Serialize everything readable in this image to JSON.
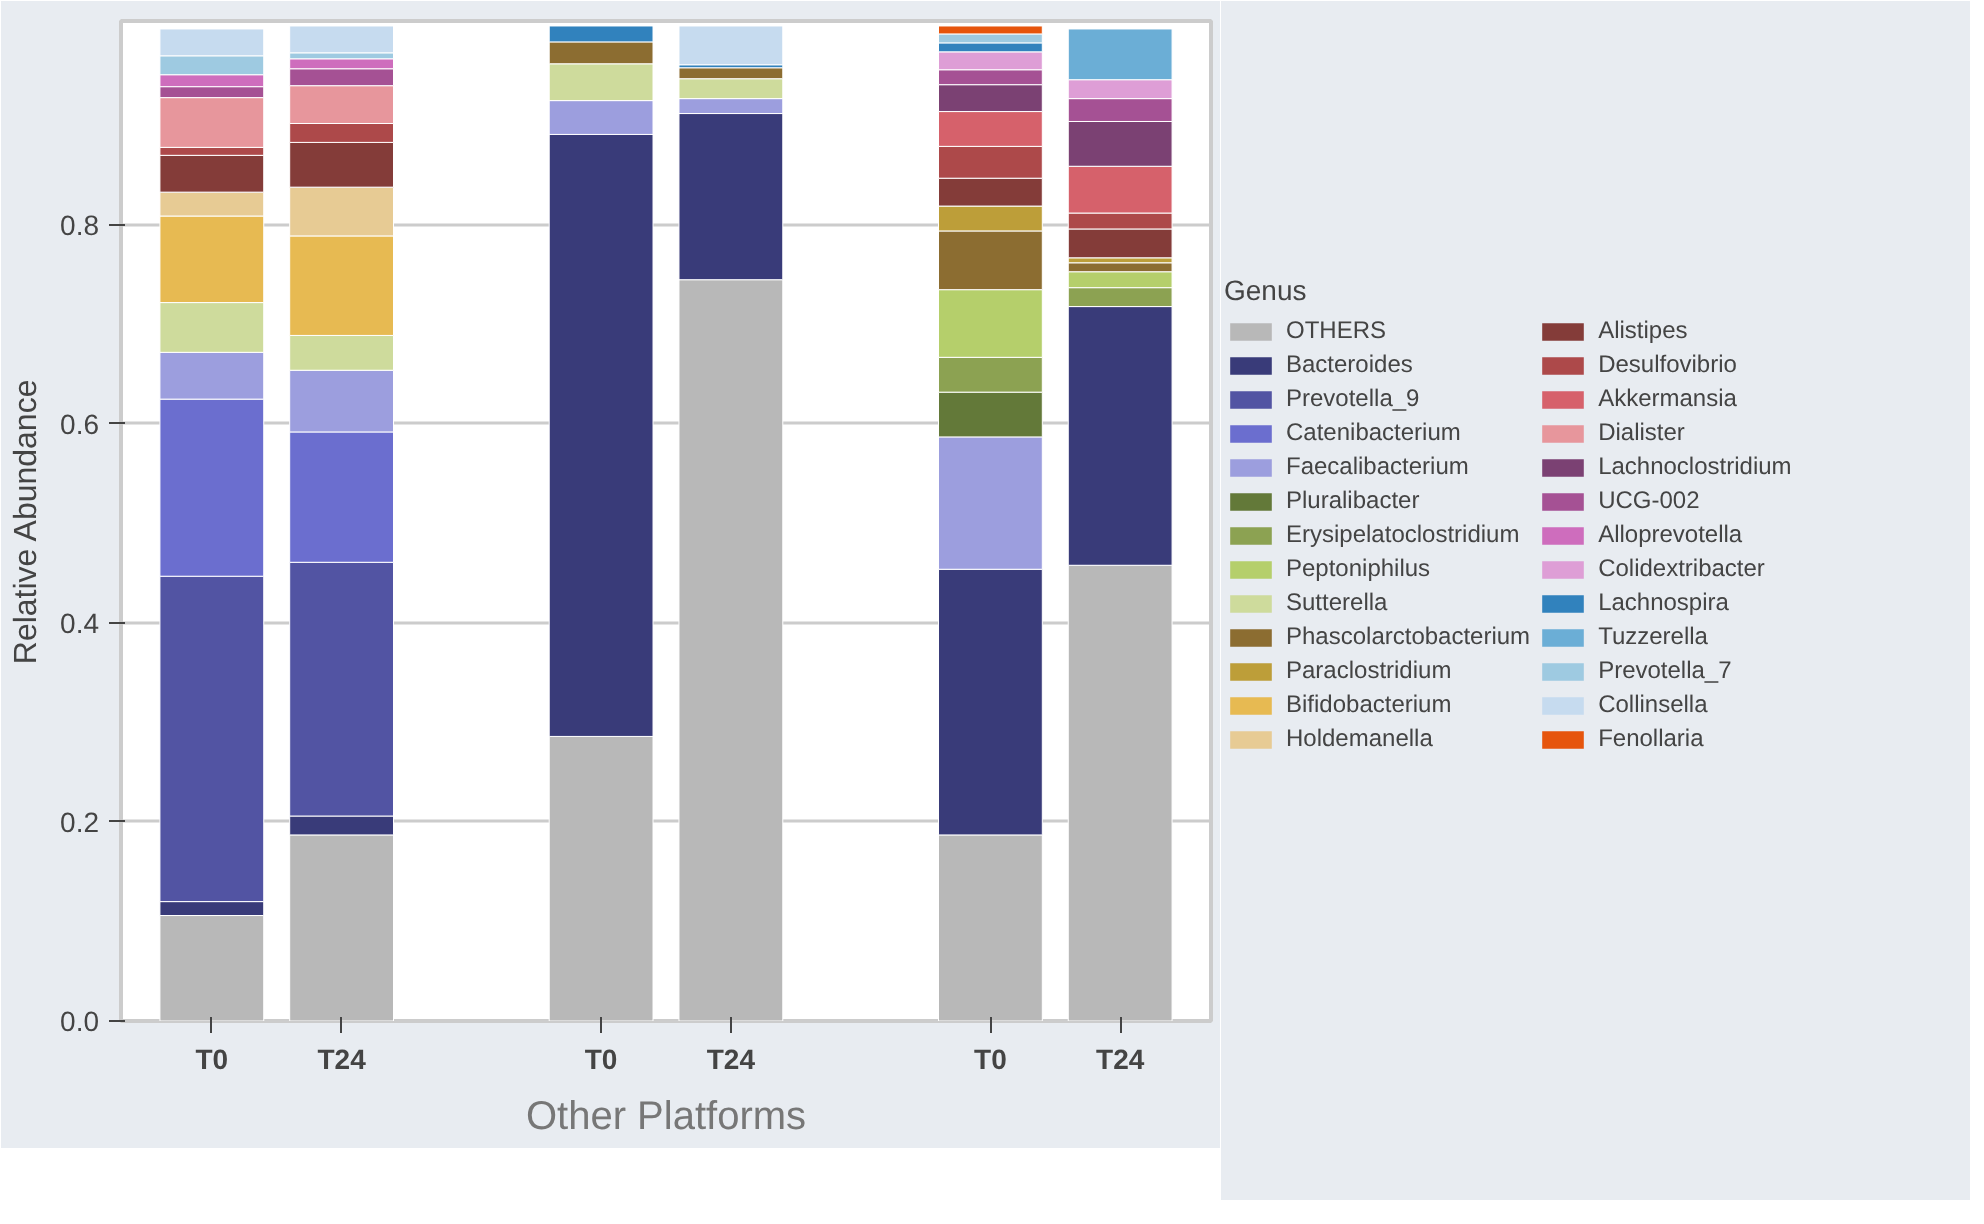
{
  "chart_data": {
    "type": "bar",
    "stacked": true,
    "ylabel": "Relative Abundance",
    "legend_title": "Genus",
    "legend": "right",
    "grid": "y",
    "categories": [
      "T0",
      "T24",
      null,
      "T0",
      "T24",
      null,
      "T0",
      "T24"
    ],
    "ylim": [
      0,
      1.005
    ],
    "yticks": [
      {
        "value": 0,
        "label": "0.0"
      },
      {
        "value": 0.2,
        "label": "0.2"
      },
      {
        "value": 0.4,
        "label": "0.4"
      },
      {
        "value": 0.6,
        "label": "0.6"
      },
      {
        "value": 0.8,
        "label": "0.8"
      }
    ],
    "annotations": [
      "Other Platforms"
    ],
    "series": [
      {
        "name": "OTHERS",
        "color": "#b8b8b8",
        "values": [
          0.106,
          0.187,
          null,
          0.286,
          0.745,
          null,
          0.187,
          0.458
        ]
      },
      {
        "name": "Bacteroides",
        "color": "#393b79",
        "values": [
          0.014,
          0.019,
          null,
          0.605,
          0.167,
          null,
          0.267,
          0.26
        ]
      },
      {
        "name": "Prevotella_9",
        "color": "#5254a3",
        "values": [
          0.327,
          0.255,
          null,
          null,
          null,
          null,
          null,
          null
        ]
      },
      {
        "name": "Catenibacterium",
        "color": "#6b6ecf",
        "values": [
          0.178,
          0.131,
          null,
          null,
          null,
          null,
          null,
          null
        ]
      },
      {
        "name": "Faecalibacterium",
        "color": "#9c9ede",
        "values": [
          0.047,
          0.062,
          null,
          0.034,
          0.015,
          null,
          0.133,
          null
        ]
      },
      {
        "name": "Pluralibacter",
        "color": "#637939",
        "values": [
          null,
          null,
          null,
          null,
          null,
          null,
          0.045,
          null
        ]
      },
      {
        "name": "Erysipelatoclostridium",
        "color": "#8ca252",
        "values": [
          null,
          null,
          null,
          null,
          null,
          null,
          0.035,
          0.019
        ]
      },
      {
        "name": "Peptoniphilus",
        "color": "#b5cf6b",
        "values": [
          null,
          null,
          null,
          null,
          null,
          null,
          0.068,
          0.016
        ]
      },
      {
        "name": "Sutterella",
        "color": "#cedb9c",
        "values": [
          0.05,
          0.035,
          null,
          0.037,
          0.02,
          null,
          null,
          null
        ]
      },
      {
        "name": "Phascolarctobacterium",
        "color": "#8c6d31",
        "values": [
          null,
          null,
          null,
          0.022,
          0.011,
          null,
          0.059,
          0.009
        ]
      },
      {
        "name": "Paraclostridium",
        "color": "#bd9e39",
        "values": [
          null,
          null,
          null,
          null,
          null,
          null,
          0.025,
          0.005
        ]
      },
      {
        "name": "Bifidobacterium",
        "color": "#e7ba52",
        "values": [
          0.087,
          0.1,
          null,
          null,
          null,
          null,
          null,
          null
        ]
      },
      {
        "name": "Holdemanella",
        "color": "#e7cb94",
        "values": [
          0.024,
          0.049,
          null,
          null,
          null,
          null,
          null,
          null
        ]
      },
      {
        "name": "Alistipes",
        "color": "#843c39",
        "values": [
          0.037,
          0.045,
          null,
          null,
          null,
          null,
          0.028,
          0.029
        ]
      },
      {
        "name": "Desulfovibrio",
        "color": "#ad494a",
        "values": [
          0.008,
          0.019,
          null,
          null,
          null,
          null,
          0.032,
          0.016
        ]
      },
      {
        "name": "Akkermansia",
        "color": "#d6616b",
        "values": [
          null,
          null,
          null,
          null,
          null,
          null,
          0.035,
          0.047
        ]
      },
      {
        "name": "Dialister",
        "color": "#e7969c",
        "values": [
          0.05,
          0.038,
          null,
          null,
          null,
          null,
          null,
          null
        ]
      },
      {
        "name": "Lachnoclostridium",
        "color": "#7b4173",
        "values": [
          null,
          null,
          null,
          null,
          null,
          null,
          0.027,
          0.045
        ]
      },
      {
        "name": "UCG-002",
        "color": "#a55194",
        "values": [
          0.011,
          0.017,
          null,
          null,
          null,
          null,
          0.015,
          0.023
        ]
      },
      {
        "name": "Alloprevotella",
        "color": "#ce6dbd",
        "values": [
          0.012,
          0.01,
          null,
          null,
          null,
          null,
          null,
          null
        ]
      },
      {
        "name": "Colidextribacter",
        "color": "#de9ed6",
        "values": [
          null,
          null,
          null,
          null,
          null,
          null,
          0.018,
          0.019
        ]
      },
      {
        "name": "Lachnospira",
        "color": "#3182bd",
        "values": [
          null,
          null,
          null,
          0.016,
          0.003,
          null,
          0.009,
          null
        ]
      },
      {
        "name": "Tuzzerella",
        "color": "#6baed6",
        "values": [
          null,
          null,
          null,
          null,
          null,
          null,
          null,
          0.051
        ]
      },
      {
        "name": "Prevotella_7",
        "color": "#9ecae1",
        "values": [
          0.019,
          0.006,
          null,
          null,
          null,
          null,
          0.009,
          null
        ]
      },
      {
        "name": "Collinsella",
        "color": "#c6dbef",
        "values": [
          0.027,
          0.027,
          null,
          null,
          0.039,
          null,
          null,
          null
        ]
      },
      {
        "name": "Fenollaria",
        "color": "#e6550d",
        "values": [
          null,
          null,
          null,
          null,
          null,
          null,
          0.008,
          null
        ]
      }
    ]
  }
}
